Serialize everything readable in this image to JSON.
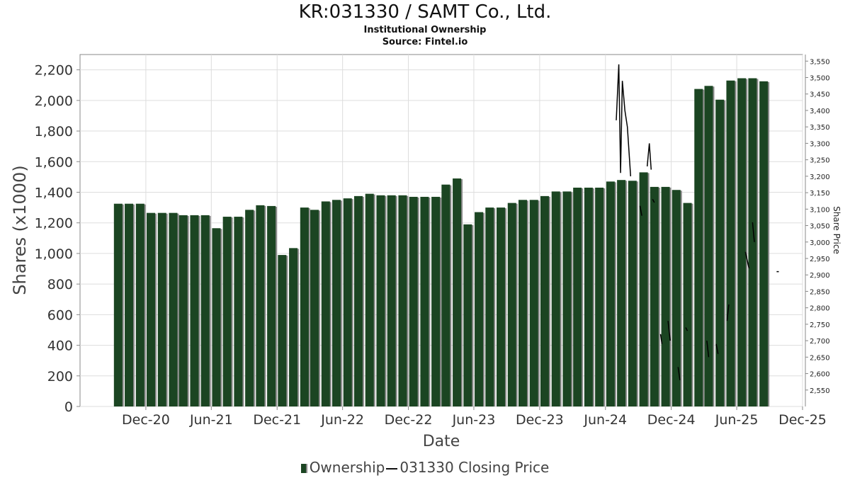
{
  "chart_data": {
    "type": "bar",
    "title": "KR:031330 / SAMT Co., Ltd.",
    "subtitle": "Institutional Ownership",
    "source": "Source: Fintel.io",
    "xlabel": "Date",
    "ylabel": "Shares (x1000)",
    "y2label": "Share Price",
    "ylim": [
      0,
      2300
    ],
    "y2lim": [
      2500,
      3570
    ],
    "yticks": [
      "0",
      "200",
      "400",
      "600",
      "800",
      "1,000",
      "1,200",
      "1,400",
      "1,600",
      "1,800",
      "2,000",
      "2,200"
    ],
    "ytick_values": [
      0,
      200,
      400,
      600,
      800,
      1000,
      1200,
      1400,
      1600,
      1800,
      2000,
      2200
    ],
    "y2ticks": [
      "2,550",
      "2,600",
      "2,650",
      "2,700",
      "2,750",
      "2,800",
      "2,850",
      "2,900",
      "2,950",
      "3,000",
      "3,050",
      "3,100",
      "3,150",
      "3,200",
      "3,250",
      "3,300",
      "3,350",
      "3,400",
      "3,450",
      "3,500",
      "3,550"
    ],
    "y2tick_values": [
      2550,
      2600,
      2650,
      2700,
      2750,
      2800,
      2850,
      2900,
      2950,
      3000,
      3050,
      3100,
      3150,
      3200,
      3250,
      3300,
      3350,
      3400,
      3450,
      3500,
      3550
    ],
    "xlim": [
      "2020-06-01",
      "2025-12-01"
    ],
    "xticks": [
      {
        "date": "2020-12-01",
        "label": "Dec-20"
      },
      {
        "date": "2021-06-01",
        "label": "Jun-21"
      },
      {
        "date": "2021-12-01",
        "label": "Dec-21"
      },
      {
        "date": "2022-06-01",
        "label": "Jun-22"
      },
      {
        "date": "2022-12-01",
        "label": "Dec-22"
      },
      {
        "date": "2023-06-01",
        "label": "Jun-23"
      },
      {
        "date": "2023-12-01",
        "label": "Dec-23"
      },
      {
        "date": "2024-06-01",
        "label": "Jun-24"
      },
      {
        "date": "2024-12-01",
        "label": "Dec-24"
      },
      {
        "date": "2025-06-01",
        "label": "Jun-25"
      },
      {
        "date": "2025-12-01",
        "label": "Dec-25"
      }
    ],
    "grid": true,
    "legend_position": "bottom",
    "series": [
      {
        "name": "Ownership",
        "color": "#1b4522",
        "x": [
          "2020-09-15",
          "2020-10-15",
          "2020-11-15",
          "2020-12-15",
          "2021-01-15",
          "2021-02-15",
          "2021-03-15",
          "2021-04-15",
          "2021-05-15",
          "2021-06-15",
          "2021-07-15",
          "2021-08-15",
          "2021-09-15",
          "2021-10-15",
          "2021-11-15",
          "2021-12-15",
          "2022-01-15",
          "2022-02-15",
          "2022-03-15",
          "2022-04-15",
          "2022-05-15",
          "2022-06-15",
          "2022-07-15",
          "2022-08-15",
          "2022-09-15",
          "2022-10-15",
          "2022-11-15",
          "2022-12-15",
          "2023-01-15",
          "2023-02-15",
          "2023-03-15",
          "2023-04-15",
          "2023-05-15",
          "2023-06-15",
          "2023-07-15",
          "2023-08-15",
          "2023-09-15",
          "2023-10-15",
          "2023-11-15",
          "2023-12-15",
          "2024-01-15",
          "2024-02-15",
          "2024-03-15",
          "2024-04-15",
          "2024-05-15",
          "2024-06-15",
          "2024-07-15",
          "2024-08-15",
          "2024-09-15",
          "2024-10-15",
          "2024-11-15",
          "2024-12-15",
          "2025-01-15",
          "2025-02-15",
          "2025-03-15",
          "2025-04-15",
          "2025-05-15",
          "2025-06-15",
          "2025-07-15",
          "2025-08-15",
          "2025-09-15"
        ],
        "values": [
          1325,
          1325,
          1325,
          1265,
          1265,
          1265,
          1250,
          1250,
          1250,
          1165,
          1240,
          1240,
          1285,
          1315,
          1310,
          990,
          1035,
          1300,
          1285,
          1340,
          1350,
          1360,
          1375,
          1390,
          1380,
          1380,
          1380,
          1370,
          1370,
          1370,
          1450,
          1490,
          1190,
          1270,
          1300,
          1300,
          1330,
          1350,
          1350,
          1375,
          1405,
          1405,
          1430,
          1430,
          1430,
          1470,
          1480,
          1475,
          1530,
          1435,
          1435,
          1415,
          1330,
          2075,
          2095,
          2005,
          2130,
          2145,
          2145,
          2125,
          0
        ]
      },
      {
        "name": "031330 Closing Price",
        "color": "#000000",
        "segments": [
          [
            [
              "2024-07-01",
              3370
            ],
            [
              "2024-07-08",
              3540
            ],
            [
              "2024-07-13",
              3210
            ],
            [
              "2024-07-18",
              3490
            ],
            [
              "2024-07-25",
              3400
            ],
            [
              "2024-08-01",
              3350
            ],
            [
              "2024-08-10",
              3200
            ]
          ],
          [
            [
              "2024-09-25",
              3230
            ],
            [
              "2024-10-01",
              3300
            ],
            [
              "2024-10-06",
              3220
            ]
          ],
          [
            [
              "2024-09-05",
              3110
            ],
            [
              "2024-09-10",
              3080
            ]
          ],
          [
            [
              "2024-10-10",
              3130
            ],
            [
              "2024-10-15",
              3120
            ]
          ],
          [
            [
              "2024-11-01",
              2720
            ],
            [
              "2024-11-05",
              2690
            ]
          ],
          [
            [
              "2024-11-22",
              2760
            ],
            [
              "2024-11-28",
              2700
            ]
          ],
          [
            [
              "2024-12-20",
              2620
            ],
            [
              "2024-12-25",
              2580
            ]
          ],
          [
            [
              "2025-01-10",
              2740
            ],
            [
              "2025-01-15",
              2730
            ]
          ],
          [
            [
              "2025-03-10",
              2700
            ],
            [
              "2025-03-15",
              2650
            ]
          ],
          [
            [
              "2025-04-05",
              2690
            ],
            [
              "2025-04-10",
              2660
            ]
          ],
          [
            [
              "2025-05-05",
              2760
            ],
            [
              "2025-05-10",
              2810
            ]
          ],
          [
            [
              "2025-06-25",
              2970
            ],
            [
              "2025-07-05",
              2920
            ]
          ],
          [
            [
              "2025-07-15",
              3060
            ],
            [
              "2025-07-20",
              3000
            ]
          ],
          [
            [
              "2025-09-20",
              2910
            ],
            [
              "2025-09-26",
              2910
            ]
          ]
        ]
      }
    ]
  }
}
